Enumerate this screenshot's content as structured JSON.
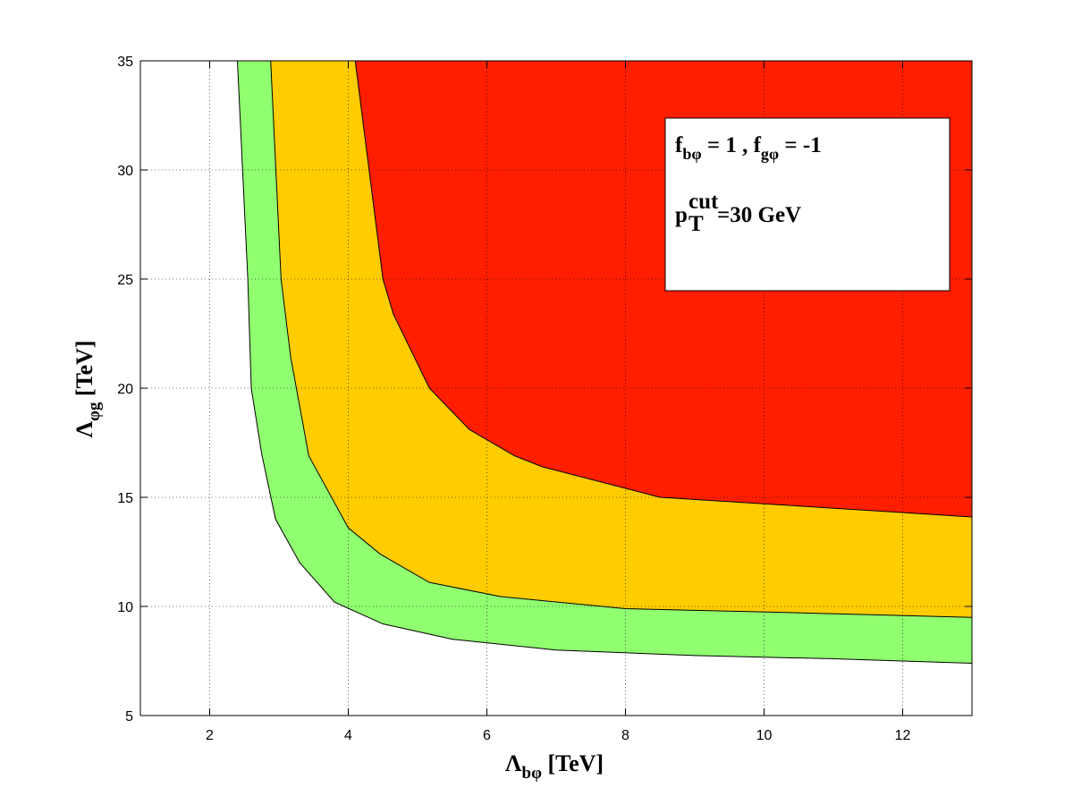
{
  "chart_data": {
    "type": "region",
    "xlabel": [
      "Λ",
      "bφ",
      " [TeV]"
    ],
    "ylabel": [
      "Λ",
      "φg",
      " [TeV]"
    ],
    "annotations": [
      [
        "f",
        "bφ",
        " = 1 , f",
        "gφ",
        " = -1"
      ],
      [
        "p",
        "cut",
        "T",
        "=30 GeV"
      ]
    ],
    "xlim": [
      1,
      13
    ],
    "ylim": [
      5,
      35
    ],
    "xticks": [
      2,
      4,
      6,
      8,
      10,
      12
    ],
    "yticks": [
      5,
      10,
      15,
      20,
      25,
      30,
      35
    ],
    "grid": true,
    "series": [
      {
        "color": "#90ff70",
        "x": [
          2.4,
          2.55,
          2.6,
          2.75,
          2.95,
          3.3,
          3.8,
          4.5,
          5.5,
          7,
          9,
          11,
          13
        ],
        "values": [
          35,
          25,
          20,
          17,
          14,
          12,
          10.2,
          9.2,
          8.5,
          8.0,
          7.75,
          7.6,
          7.4
        ]
      },
      {
        "color": "#ffcc00",
        "x": [
          2.88,
          3.03,
          3.17,
          3.43,
          4.0,
          4.46,
          5.17,
          6.2,
          8,
          10.6,
          13
        ],
        "values": [
          35,
          25,
          21.4,
          16.9,
          13.6,
          12.4,
          11.1,
          10.45,
          9.9,
          9.7,
          9.5
        ]
      },
      {
        "color": "#ff1e00",
        "x": [
          4.1,
          4.5,
          4.65,
          5.17,
          5.75,
          6.4,
          6.8,
          8.5,
          13
        ],
        "values": [
          35,
          25,
          23.4,
          20,
          18.1,
          16.9,
          16.4,
          15.0,
          14.1
        ]
      }
    ]
  }
}
